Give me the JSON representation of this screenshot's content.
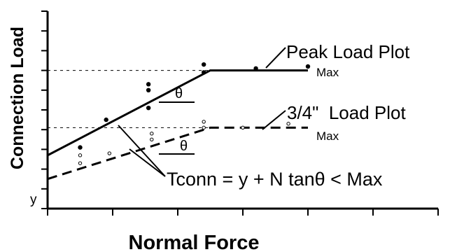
{
  "chart_data": {
    "type": "line",
    "title": "",
    "xlabel": "Normal Force",
    "ylabel": "Connection Load",
    "xlim": [
      0,
      6
    ],
    "ylim": [
      0,
      10
    ],
    "x_ticks": [
      0,
      1,
      2,
      3,
      4,
      5,
      6
    ],
    "y_ticks": [
      0,
      1,
      2,
      3,
      4,
      5,
      6,
      7,
      8,
      9,
      10
    ],
    "grid": false,
    "series": [
      {
        "name": "Peak Load Plot",
        "style": "solid",
        "line": [
          [
            0,
            2.7
          ],
          [
            2.5,
            7.0
          ],
          [
            4,
            7.0
          ]
        ],
        "points": [
          [
            0.5,
            3.1
          ],
          [
            0.9,
            4.5
          ],
          [
            1.55,
            5.1
          ],
          [
            1.55,
            6.0
          ],
          [
            1.55,
            6.3
          ],
          [
            2.4,
            6.9
          ],
          [
            2.4,
            7.3
          ],
          [
            3.2,
            7.1
          ],
          [
            4,
            7.2
          ]
        ],
        "max_label": "Max",
        "max_value": 7.0
      },
      {
        "name": "3/4\"  Load Plot",
        "style": "dashed",
        "line": [
          [
            0,
            1.5
          ],
          [
            2.5,
            4.1
          ],
          [
            4,
            4.1
          ]
        ],
        "points": [
          [
            0.5,
            2.3
          ],
          [
            0.5,
            2.7
          ],
          [
            0.95,
            2.8
          ],
          [
            1.6,
            3.5
          ],
          [
            1.6,
            3.8
          ],
          [
            2.4,
            4.1
          ],
          [
            2.4,
            4.4
          ],
          [
            3.0,
            4.1
          ],
          [
            3.7,
            4.3
          ]
        ],
        "max_label": "Max",
        "max_value": 4.1
      }
    ],
    "annotations": {
      "theta": "θ",
      "equation": "Tconn = y + N tanθ  < Max",
      "intercept": "y"
    }
  }
}
